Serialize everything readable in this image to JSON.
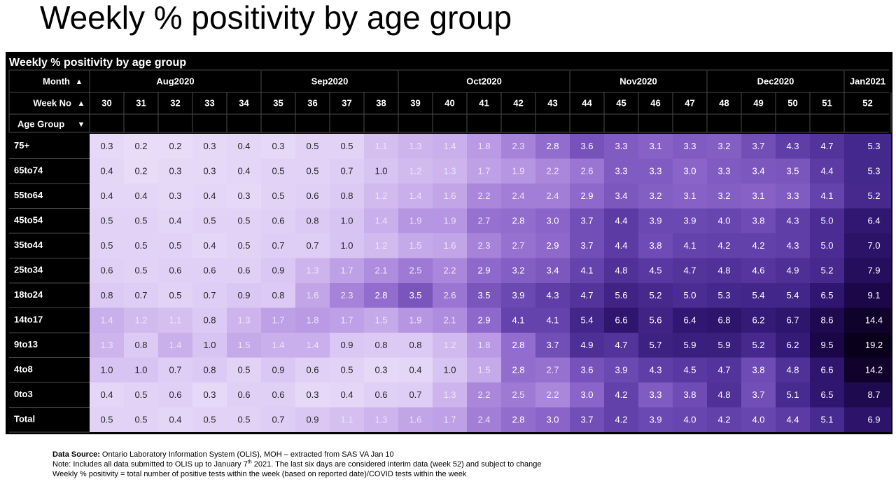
{
  "slide_title": "Weekly % positivity by age group",
  "chart_data": {
    "type": "table",
    "title": "Weekly % positivity by age group",
    "header_labels": {
      "month": "Month",
      "week": "Week No",
      "age_group": "Age Group"
    },
    "sort_icons": {
      "month": "▲",
      "week": "▲",
      "age_group": "▼"
    },
    "months": [
      {
        "label": "Aug2020",
        "weeks": 5
      },
      {
        "label": "Sep2020",
        "weeks": 4
      },
      {
        "label": "Oct2020",
        "weeks": 5
      },
      {
        "label": "Nov2020",
        "weeks": 4
      },
      {
        "label": "Dec2020",
        "weeks": 4
      },
      {
        "label": "Jan2021",
        "weeks": 1
      }
    ],
    "weeks": [
      "30",
      "31",
      "32",
      "33",
      "34",
      "35",
      "36",
      "37",
      "38",
      "39",
      "40",
      "41",
      "42",
      "43",
      "44",
      "45",
      "46",
      "47",
      "48",
      "49",
      "50",
      "51",
      "52"
    ],
    "age_groups": [
      "75+",
      "65to74",
      "55to64",
      "45to54",
      "35to44",
      "25to34",
      "18to24",
      "14to17",
      "9to13",
      "4to8",
      "0to3",
      "Total"
    ],
    "values": [
      [
        0.3,
        0.2,
        0.2,
        0.3,
        0.4,
        0.3,
        0.5,
        0.5,
        1.1,
        1.3,
        1.4,
        1.8,
        2.3,
        2.8,
        3.6,
        3.3,
        3.1,
        3.3,
        3.2,
        3.7,
        4.3,
        4.7,
        5.3
      ],
      [
        0.4,
        0.2,
        0.3,
        0.3,
        0.4,
        0.5,
        0.5,
        0.7,
        1.0,
        1.2,
        1.3,
        1.7,
        1.9,
        2.2,
        2.6,
        3.3,
        3.3,
        3.0,
        3.3,
        3.4,
        3.5,
        4.4,
        5.3
      ],
      [
        0.4,
        0.4,
        0.3,
        0.4,
        0.3,
        0.5,
        0.6,
        0.8,
        1.2,
        1.4,
        1.6,
        2.2,
        2.4,
        2.4,
        2.9,
        3.4,
        3.2,
        3.1,
        3.2,
        3.1,
        3.3,
        4.1,
        5.2
      ],
      [
        0.5,
        0.5,
        0.4,
        0.5,
        0.5,
        0.6,
        0.8,
        1.0,
        1.4,
        1.9,
        1.9,
        2.7,
        2.8,
        3.0,
        3.7,
        4.4,
        3.9,
        3.9,
        4.0,
        3.8,
        4.3,
        5.0,
        6.4
      ],
      [
        0.5,
        0.5,
        0.5,
        0.4,
        0.5,
        0.7,
        0.7,
        1.0,
        1.2,
        1.5,
        1.6,
        2.3,
        2.7,
        2.9,
        3.7,
        4.4,
        3.8,
        4.1,
        4.2,
        4.2,
        4.3,
        5.0,
        7.0
      ],
      [
        0.6,
        0.5,
        0.6,
        0.6,
        0.6,
        0.9,
        1.3,
        1.7,
        2.1,
        2.5,
        2.2,
        2.9,
        3.2,
        3.4,
        4.1,
        4.8,
        4.5,
        4.7,
        4.8,
        4.6,
        4.9,
        5.2,
        7.9
      ],
      [
        0.8,
        0.7,
        0.5,
        0.7,
        0.9,
        0.8,
        1.6,
        2.3,
        2.8,
        3.5,
        2.6,
        3.5,
        3.9,
        4.3,
        4.7,
        5.6,
        5.2,
        5.0,
        5.3,
        5.4,
        5.4,
        6.5,
        9.1
      ],
      [
        1.4,
        1.2,
        1.1,
        0.8,
        1.3,
        1.7,
        1.8,
        1.7,
        1.5,
        1.9,
        2.1,
        2.9,
        4.1,
        4.1,
        5.4,
        6.6,
        5.6,
        6.4,
        6.8,
        6.2,
        6.7,
        8.6,
        14.4
      ],
      [
        1.3,
        0.8,
        1.4,
        1.0,
        1.5,
        1.4,
        1.4,
        0.9,
        0.8,
        0.8,
        1.2,
        1.8,
        2.8,
        3.7,
        4.9,
        4.7,
        5.7,
        5.9,
        5.9,
        5.2,
        6.2,
        9.5,
        19.2
      ],
      [
        1.0,
        1.0,
        0.7,
        0.8,
        0.5,
        0.9,
        0.6,
        0.5,
        0.3,
        0.4,
        1.0,
        1.5,
        2.8,
        2.7,
        3.6,
        3.9,
        4.3,
        4.5,
        4.7,
        3.8,
        4.8,
        6.6,
        14.2
      ],
      [
        0.4,
        0.5,
        0.6,
        0.3,
        0.6,
        0.6,
        0.3,
        0.4,
        0.6,
        0.7,
        1.3,
        2.2,
        2.5,
        2.2,
        3.0,
        4.2,
        3.3,
        3.8,
        4.8,
        3.7,
        5.1,
        6.5,
        8.7
      ],
      [
        0.5,
        0.5,
        0.4,
        0.5,
        0.5,
        0.7,
        0.9,
        1.1,
        1.3,
        1.6,
        1.7,
        2.4,
        2.8,
        3.0,
        3.7,
        4.2,
        3.9,
        4.0,
        4.2,
        4.0,
        4.4,
        5.1,
        6.9
      ]
    ]
  },
  "footer": {
    "source_label": "Data Source:",
    "source_text": "Ontario Laboratory Information System (OLIS), MOH – extracted from SAS VA Jan 10",
    "note_prefix": "Note:  Includes all data submitted to OLIS up to January 7",
    "note_sup": "th",
    "note_suffix": " 2021. The last six days are considered interim data (week 52) and subject to change",
    "definition": "Weekly % positivity = total number of positive tests within the week (based on reported date)/COVID tests within the week"
  }
}
